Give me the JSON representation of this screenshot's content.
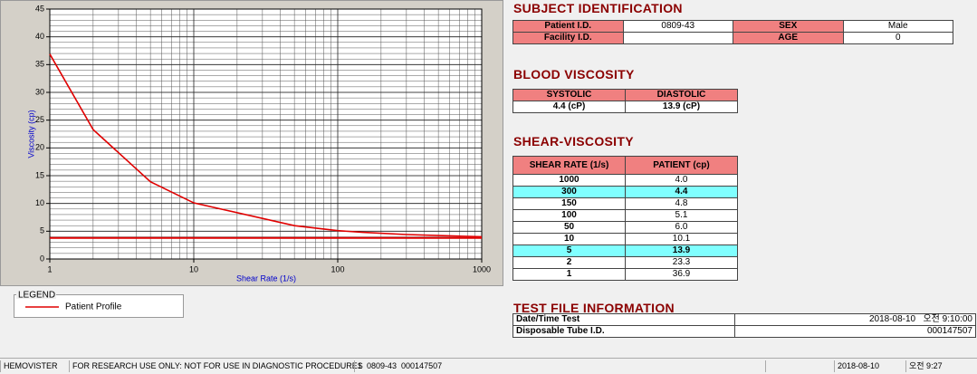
{
  "chart_data": {
    "type": "line",
    "x_label": "Shear Rate (1/s)",
    "y_label": "Viscosity (cp)",
    "xscale": "log",
    "xlim": [
      1,
      1000
    ],
    "xticks": [
      1,
      10,
      100,
      1000
    ],
    "ylim": [
      0,
      45
    ],
    "yticks": [
      0,
      5,
      10,
      15,
      20,
      25,
      30,
      35,
      40,
      45
    ],
    "grid": true,
    "x": [
      1,
      2,
      5,
      10,
      50,
      100,
      150,
      300,
      1000
    ],
    "series": [
      {
        "name": "Patient Profile",
        "color": "#e00000",
        "values": [
          36.9,
          23.3,
          13.9,
          10.1,
          6.0,
          5.1,
          4.8,
          4.4,
          4.0
        ]
      }
    ],
    "hline": 3.8,
    "legend_title": "LEGEND"
  },
  "subject": {
    "title": "SUBJECT IDENTIFICATION",
    "rows": [
      [
        "Patient I.D.",
        "0809-43",
        "SEX",
        "Male"
      ],
      [
        "Facility I.D.",
        null,
        "AGE",
        "0"
      ]
    ]
  },
  "blood_viscosity": {
    "title": "BLOOD VISCOSITY",
    "header": [
      "SYSTOLIC",
      "DIASTOLIC"
    ],
    "values": [
      "4.4 (cP)",
      "13.9 (cP)"
    ]
  },
  "shear_viscosity": {
    "title": "SHEAR-VISCOSITY",
    "header": [
      "SHEAR RATE (1/s)",
      "PATIENT (cp)"
    ],
    "rows": [
      [
        "1000",
        "4.0"
      ],
      [
        "300",
        "4.4"
      ],
      [
        "150",
        "4.8"
      ],
      [
        "100",
        "5.1"
      ],
      [
        "50",
        "6.0"
      ],
      [
        "10",
        "10.1"
      ],
      [
        "5",
        "13.9"
      ],
      [
        "2",
        "23.3"
      ],
      [
        "1",
        "36.9"
      ]
    ],
    "highlight_rows": [
      1,
      6
    ]
  },
  "test_file": {
    "title": "TEST FILE INFORMATION",
    "rows": [
      [
        "Date/Time Test",
        "2018-08-10   오전 9:10:00"
      ],
      [
        "Disposable Tube I.D.",
        "000147507"
      ]
    ]
  },
  "status_bar": [
    "HEMOVISTER",
    "FOR RESEARCH USE ONLY: NOT FOR USE IN DIAGNOSTIC PROCEDURES",
    "1  0809-43  000147507",
    "2018-08-10",
    "오전 9:27"
  ]
}
